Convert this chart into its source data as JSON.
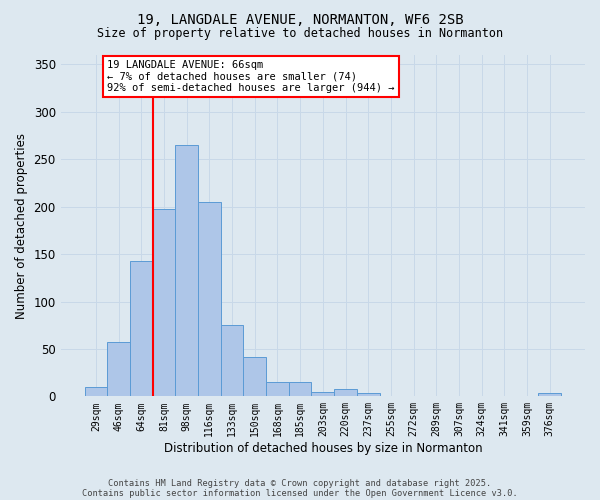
{
  "title_line1": "19, LANGDALE AVENUE, NORMANTON, WF6 2SB",
  "title_line2": "Size of property relative to detached houses in Normanton",
  "xlabel": "Distribution of detached houses by size in Normanton",
  "ylabel": "Number of detached properties",
  "categories": [
    "29sqm",
    "46sqm",
    "64sqm",
    "81sqm",
    "98sqm",
    "116sqm",
    "133sqm",
    "150sqm",
    "168sqm",
    "185sqm",
    "203sqm",
    "220sqm",
    "237sqm",
    "255sqm",
    "272sqm",
    "289sqm",
    "307sqm",
    "324sqm",
    "341sqm",
    "359sqm",
    "376sqm"
  ],
  "values": [
    10,
    57,
    143,
    198,
    265,
    205,
    75,
    42,
    15,
    15,
    5,
    8,
    3,
    0,
    0,
    0,
    0,
    0,
    0,
    0,
    3
  ],
  "bar_color": "#aec6e8",
  "bar_edge_color": "#5b9bd5",
  "redline_bar_index": 2,
  "annotation_text": "19 LANGDALE AVENUE: 66sqm\n← 7% of detached houses are smaller (74)\n92% of semi-detached houses are larger (944) →",
  "annotation_box_color": "white",
  "annotation_box_edge_color": "red",
  "redline_color": "red",
  "ylim": [
    0,
    360
  ],
  "yticks": [
    0,
    50,
    100,
    150,
    200,
    250,
    300,
    350
  ],
  "grid_color": "#c8d8e8",
  "background_color": "#dde8f0",
  "footnote1": "Contains HM Land Registry data © Crown copyright and database right 2025.",
  "footnote2": "Contains public sector information licensed under the Open Government Licence v3.0."
}
